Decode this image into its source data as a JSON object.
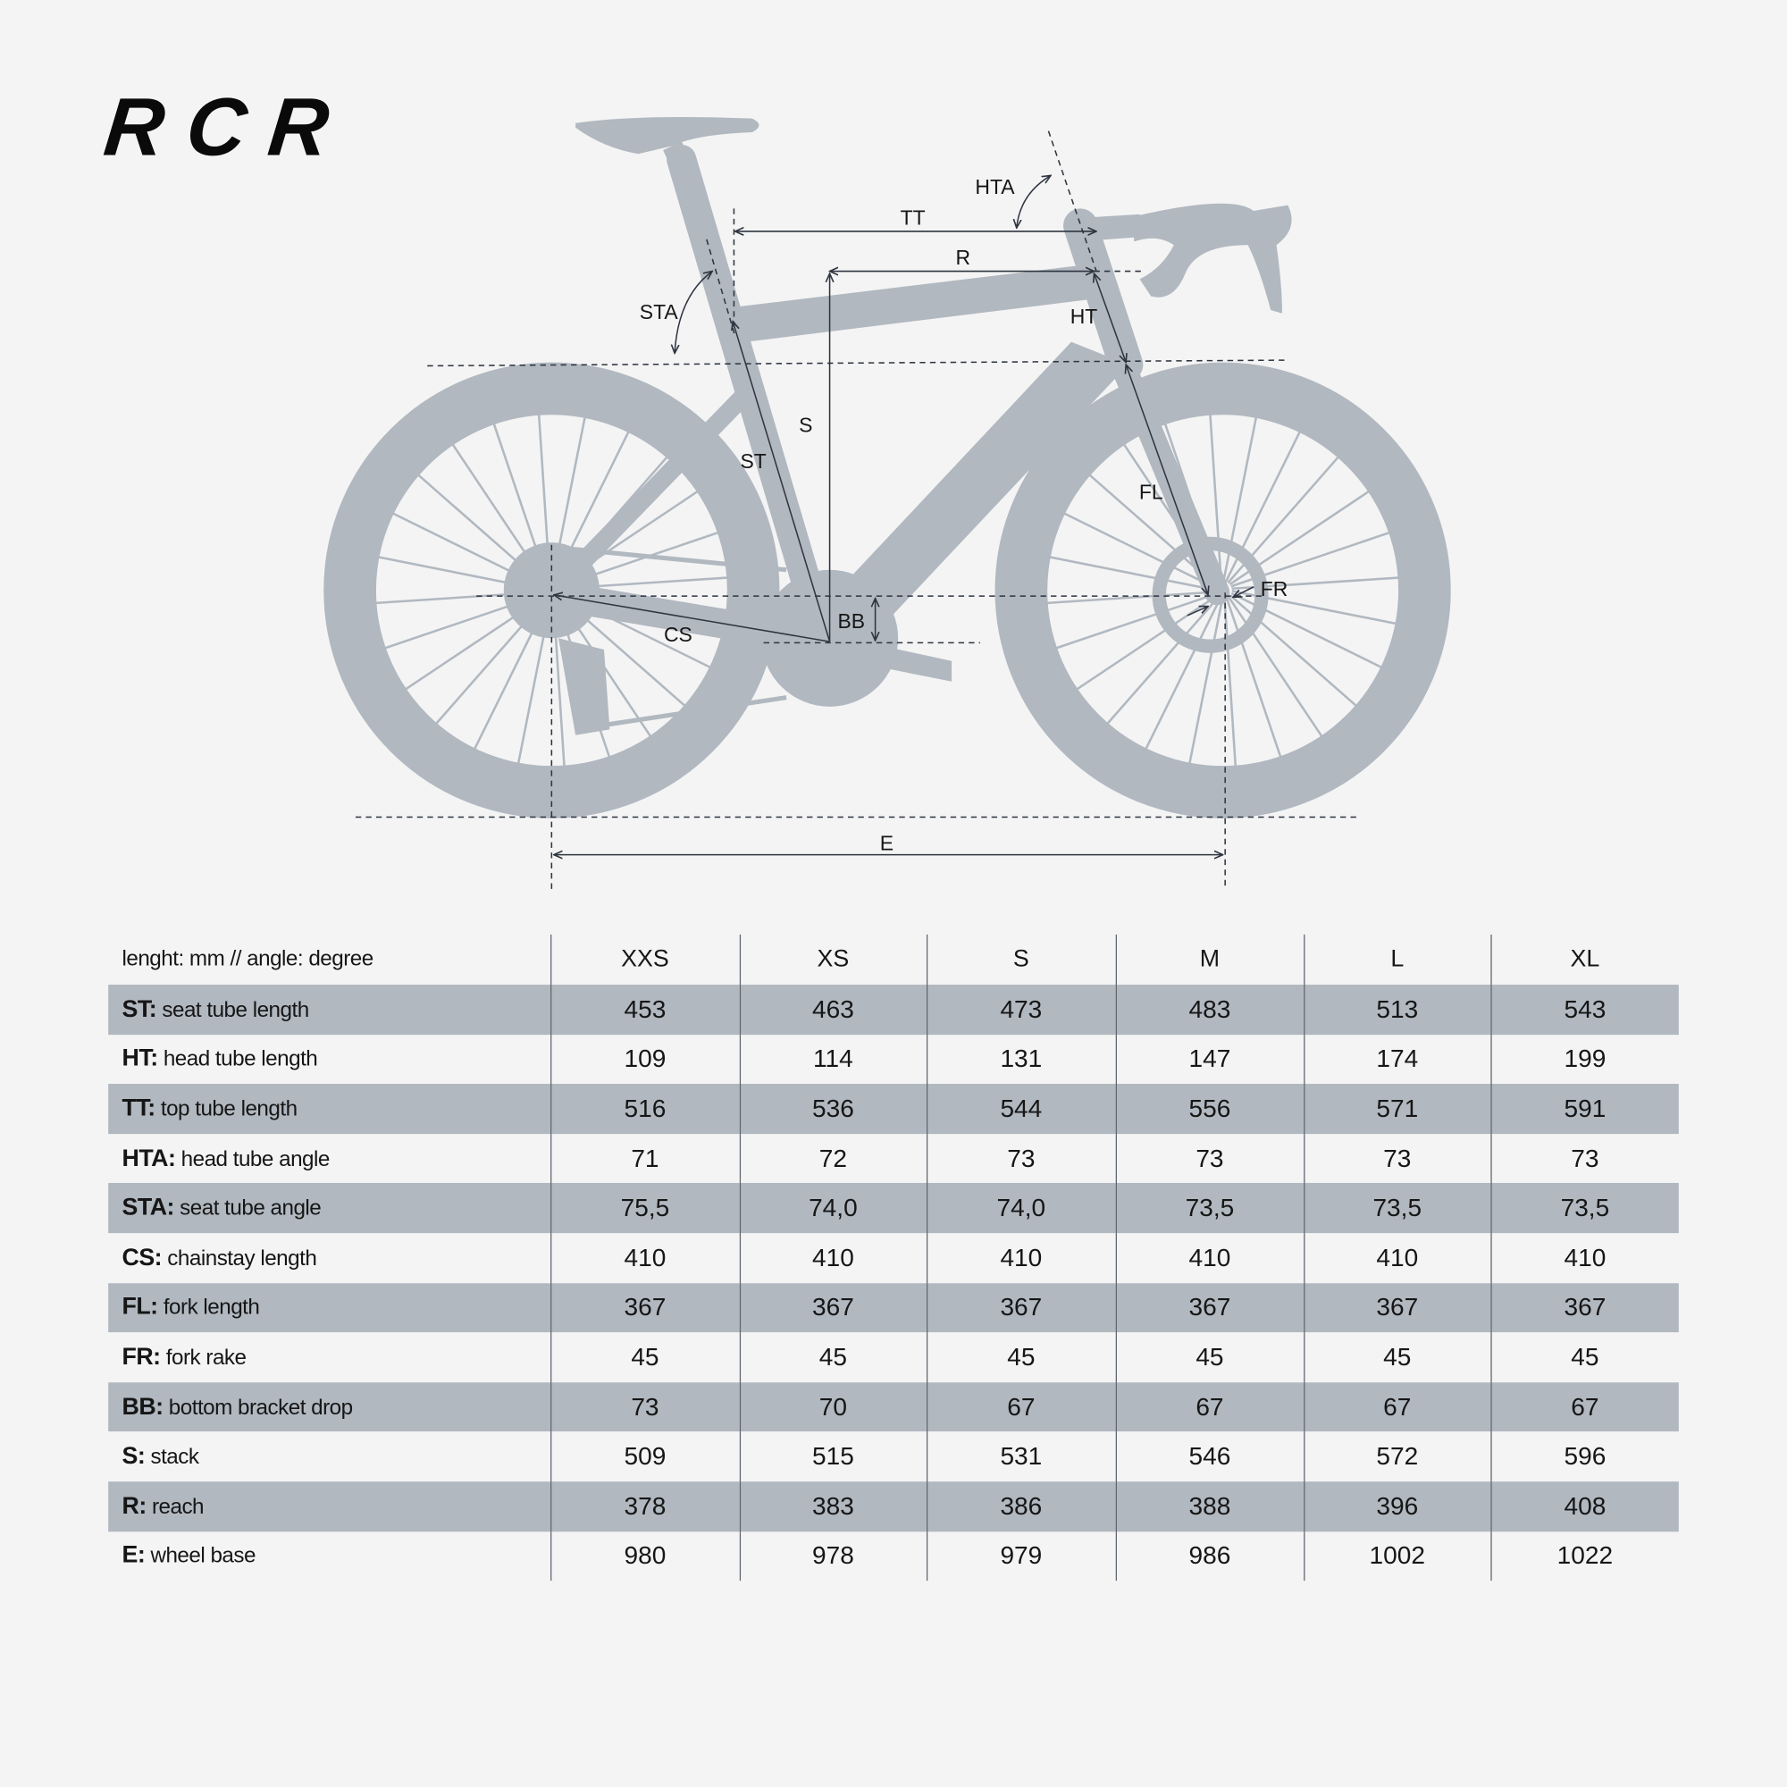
{
  "brand": {
    "logo_text": "RCR"
  },
  "colors": {
    "background": "#f4f4f4",
    "bike_silhouette": "#b1b8c0",
    "row_stripe": "#b1b8c0",
    "text": "#161616",
    "dimension_lines": "#2e3540"
  },
  "diagram": {
    "labels": {
      "TT": "TT",
      "R": "R",
      "HTA": "HTA",
      "STA": "STA",
      "HT": "HT",
      "S": "S",
      "ST": "ST",
      "FL": "FL",
      "FR": "FR",
      "BB": "BB",
      "CS": "CS",
      "E": "E"
    }
  },
  "table": {
    "units_note": "lenght: mm // angle: degree",
    "sizes": [
      "XXS",
      "XS",
      "S",
      "M",
      "L",
      "XL"
    ],
    "rows": [
      {
        "code": "ST:",
        "label": " seat tube length",
        "values": [
          "453",
          "463",
          "473",
          "483",
          "513",
          "543"
        ]
      },
      {
        "code": "HT:",
        "label": " head tube length",
        "values": [
          "109",
          "114",
          "131",
          "147",
          "174",
          "199"
        ]
      },
      {
        "code": "TT:",
        "label": " top tube length",
        "values": [
          "516",
          "536",
          "544",
          "556",
          "571",
          "591"
        ]
      },
      {
        "code": "HTA:",
        "label": " head tube angle",
        "values": [
          "71",
          "72",
          "73",
          "73",
          "73",
          "73"
        ]
      },
      {
        "code": "STA:",
        "label": " seat tube angle",
        "values": [
          "75,5",
          "74,0",
          "74,0",
          "73,5",
          "73,5",
          "73,5"
        ]
      },
      {
        "code": "CS:",
        "label": " chainstay length",
        "values": [
          "410",
          "410",
          "410",
          "410",
          "410",
          "410"
        ]
      },
      {
        "code": "FL:",
        "label": " fork length",
        "values": [
          "367",
          "367",
          "367",
          "367",
          "367",
          "367"
        ]
      },
      {
        "code": "FR:",
        "label": " fork rake",
        "values": [
          "45",
          "45",
          "45",
          "45",
          "45",
          "45"
        ]
      },
      {
        "code": "BB:",
        "label": " bottom bracket drop",
        "values": [
          "73",
          "70",
          "67",
          "67",
          "67",
          "67"
        ]
      },
      {
        "code": "S:",
        "label": " stack",
        "values": [
          "509",
          "515",
          "531",
          "546",
          "572",
          "596"
        ]
      },
      {
        "code": "R:",
        "label": " reach",
        "values": [
          "378",
          "383",
          "386",
          "388",
          "396",
          "408"
        ]
      },
      {
        "code": "E:",
        "label": " wheel base",
        "values": [
          "980",
          "978",
          "979",
          "986",
          "1002",
          "1022"
        ]
      }
    ]
  }
}
